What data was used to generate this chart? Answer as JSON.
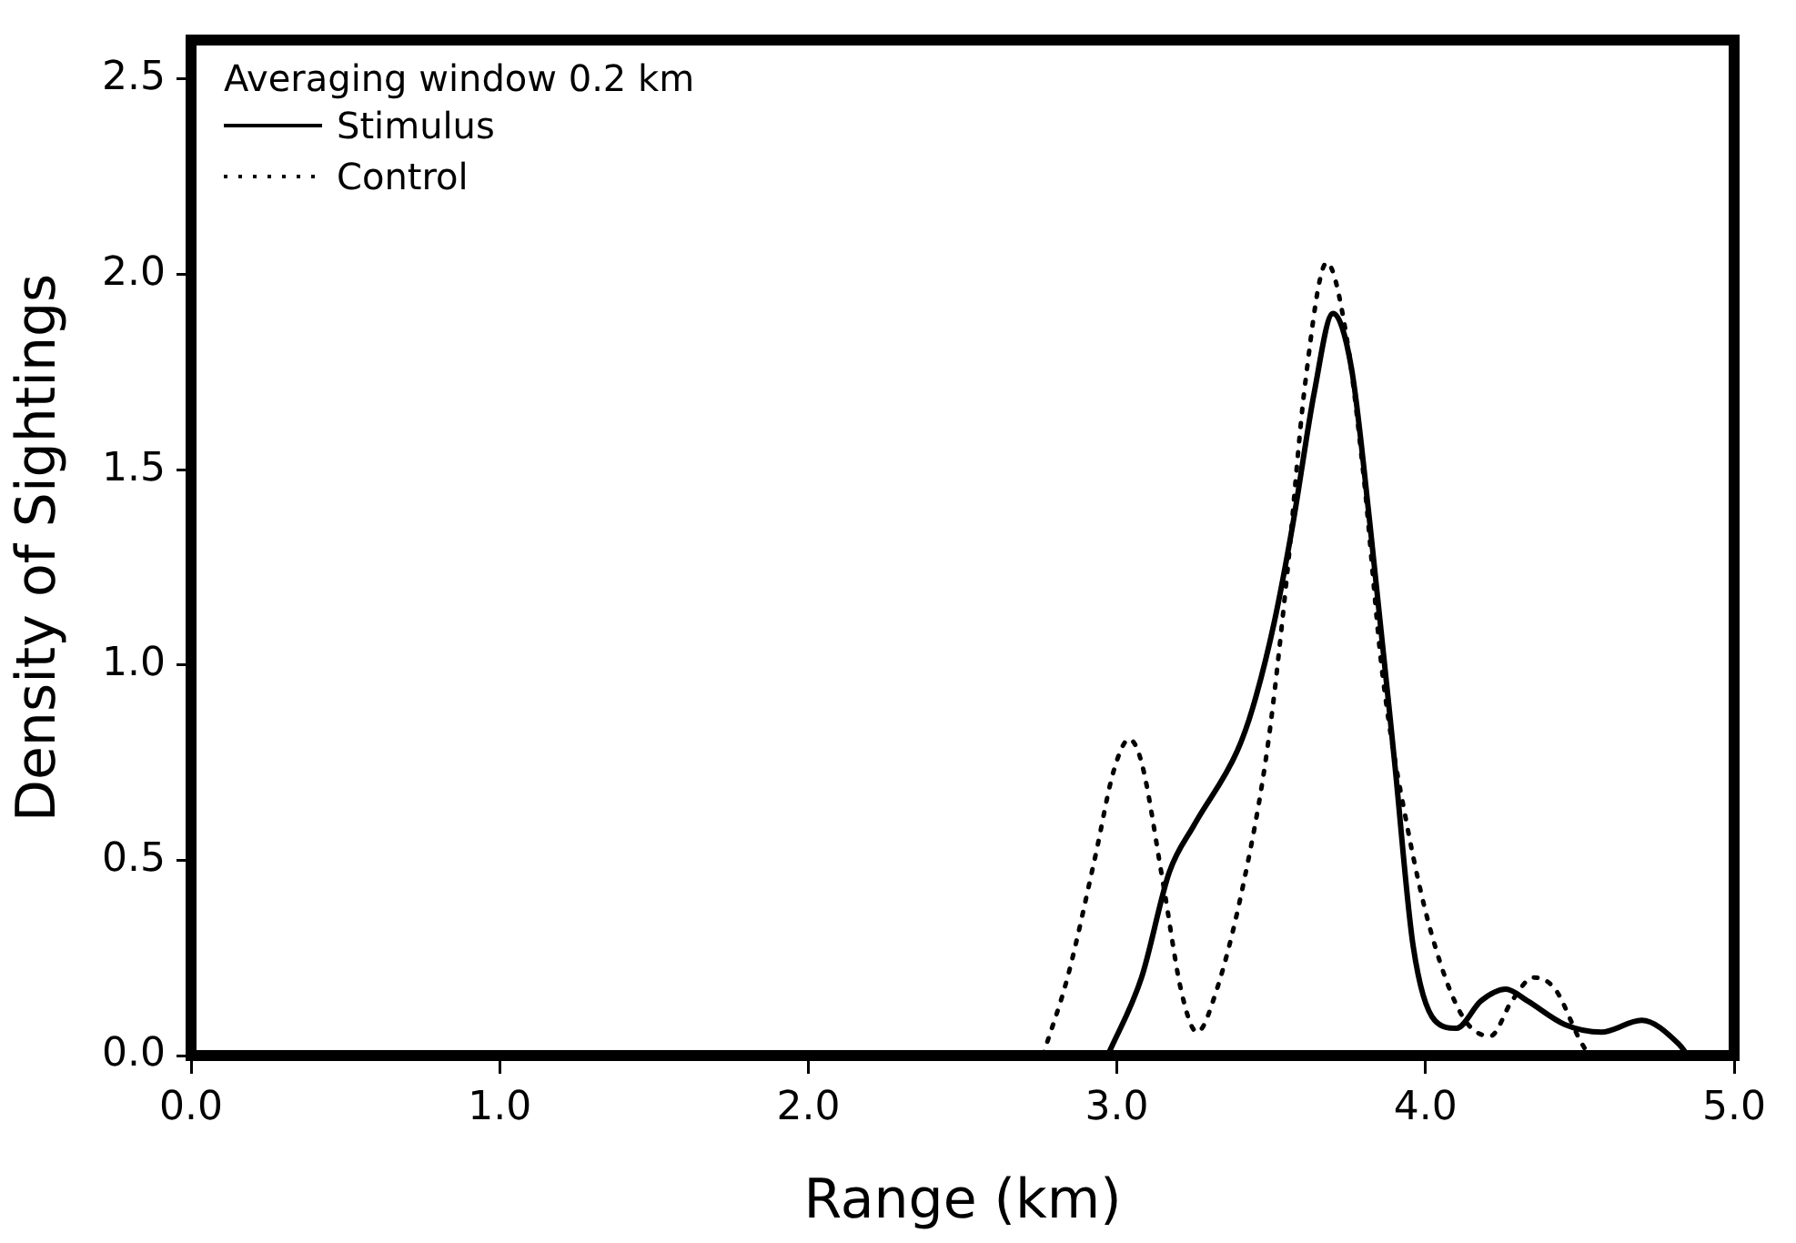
{
  "chart_data": {
    "type": "line",
    "xlabel": "Range (km)",
    "ylabel": "Density of Sightings",
    "legend_title": "Averaging window 0.2 km",
    "legend": "top left",
    "marker": "none",
    "grid": false,
    "xlim": [
      0,
      5
    ],
    "xticks": [
      {
        "value": 0,
        "label": "0.0"
      },
      {
        "value": 1,
        "label": "1.0"
      },
      {
        "value": 2,
        "label": "2.0"
      },
      {
        "value": 3,
        "label": "3.0"
      },
      {
        "value": 4,
        "label": "4.0"
      },
      {
        "value": 5,
        "label": "5.0"
      }
    ],
    "ylim": [
      0,
      2.6
    ],
    "yticks": [
      {
        "value": 0,
        "label": "0.0"
      },
      {
        "value": 0.5,
        "label": "0.5"
      },
      {
        "value": 1,
        "label": "1.0"
      },
      {
        "value": 1.5,
        "label": "1.5"
      },
      {
        "value": 2,
        "label": "2.0"
      },
      {
        "value": 2.5,
        "label": "2.5"
      }
    ],
    "series": [
      {
        "name": "Stimulus",
        "color": "#000000",
        "line_style": "solid",
        "x": [
          2.97,
          3.08,
          3.17,
          3.25,
          3.39,
          3.44,
          3.51,
          3.57,
          3.64,
          3.7,
          3.76,
          3.82,
          3.9,
          3.96,
          4.03,
          4.1,
          4.18,
          4.26,
          4.33,
          4.45,
          4.57,
          4.7,
          4.82,
          4.85
        ],
        "values": [
          0,
          0.2,
          0.47,
          0.59,
          0.78,
          0.89,
          1.11,
          1.36,
          1.7,
          1.9,
          1.76,
          1.36,
          0.75,
          0.28,
          0.09,
          0.07,
          0.14,
          0.17,
          0.14,
          0.08,
          0.06,
          0.09,
          0.03,
          0
        ]
      },
      {
        "name": "Control",
        "color": "#000000",
        "line_style": "dotted",
        "x": [
          2.76,
          2.84,
          2.93,
          2.99,
          3.04,
          3.08,
          3.15,
          3.21,
          3.26,
          3.32,
          3.41,
          3.49,
          3.55,
          3.61,
          3.68,
          3.74,
          3.8,
          3.86,
          3.94,
          4.02,
          4.12,
          4.21,
          4.28,
          4.35,
          4.42,
          4.5,
          4.53
        ],
        "values": [
          0,
          0.2,
          0.51,
          0.73,
          0.81,
          0.75,
          0.44,
          0.16,
          0.06,
          0.16,
          0.44,
          0.8,
          1.22,
          1.72,
          2.03,
          1.86,
          1.48,
          0.98,
          0.59,
          0.31,
          0.1,
          0.05,
          0.14,
          0.2,
          0.17,
          0.04,
          0
        ]
      }
    ]
  }
}
